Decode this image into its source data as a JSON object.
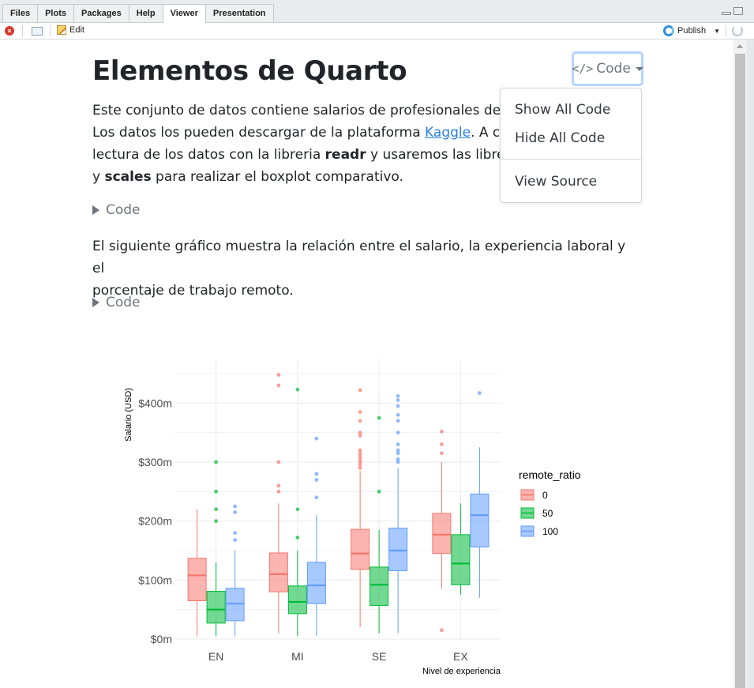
{
  "tabs": [
    "Files",
    "Plots",
    "Packages",
    "Help",
    "Viewer",
    "Presentation"
  ],
  "active_tab": "Viewer",
  "toolbar": {
    "edit_label": "Edit",
    "publish_label": "Publish"
  },
  "doc": {
    "title": "Elementos de Quarto",
    "p1_l1": "Este conjunto de datos contiene salarios de profesionales del área",
    "p1_l2_a": "Los datos los pueden descargar de la plataforma ",
    "p1_l2_link": "Kaggle",
    "p1_l2_b": ". A contin",
    "p1_l3_a": "lectura de los datos con la libreria ",
    "p1_l3_b1": "readr",
    "p1_l3_c": " y usaremos las librerias ",
    "p1_l3_d": "g",
    "p1_l4_a": "y ",
    "p1_l4_b": "scales",
    "p1_l4_c": " para realizar el boxplot comparativo.",
    "code_toggle_1": "Code",
    "p2_l1": "El siguiente gráfico muestra la relación entre el salario, la experiencia laboral y el",
    "p2_l2": "porcentaje de trabajo remoto.",
    "code_toggle_2": "Code"
  },
  "code_button": {
    "icon": "</>",
    "label": "Code"
  },
  "code_menu": [
    "Show All Code",
    "Hide All Code",
    "View Source"
  ],
  "colors": {
    "r0": "#F8766D",
    "r50": "#00BA38",
    "r100": "#619CFF",
    "link": "#2780e3"
  },
  "chart_data": {
    "type": "boxplot",
    "ylabel": "Salario (USD)",
    "xlabel": "Nivel de experiencia",
    "ylim": [
      0,
      450
    ],
    "yticks": [
      0,
      100,
      200,
      300,
      400
    ],
    "ytick_labels": [
      "$0m",
      "$100m",
      "$200m",
      "$300m",
      "$400m"
    ],
    "categories": [
      "EN",
      "MI",
      "SE",
      "EX"
    ],
    "legend_title": "remote_ratio",
    "legend_position": "right",
    "series": [
      {
        "name": "0",
        "color": "#F8766D",
        "boxes": [
          {
            "min": 5,
            "q1": 65,
            "median": 108,
            "q3": 137,
            "max": 220,
            "outliers": []
          },
          {
            "min": 10,
            "q1": 80,
            "median": 110,
            "q3": 146,
            "max": 230,
            "outliers": [
              250,
              260,
              300,
              430,
              448
            ]
          },
          {
            "min": 20,
            "q1": 118,
            "median": 145,
            "q3": 186,
            "max": 285,
            "outliers": [
              290,
              295,
              300,
              305,
              310,
              315,
              320,
              345,
              350,
              370,
              385,
              422
            ]
          },
          {
            "min": 85,
            "q1": 145,
            "median": 177,
            "q3": 213,
            "max": 300,
            "outliers": [
              15,
              315,
              330,
              352
            ]
          }
        ]
      },
      {
        "name": "50",
        "color": "#00BA38",
        "boxes": [
          {
            "min": 5,
            "q1": 27,
            "median": 50,
            "q3": 81,
            "max": 130,
            "outliers": [
              200,
              220,
              250,
              300
            ]
          },
          {
            "min": 5,
            "q1": 43,
            "median": 63,
            "q3": 90,
            "max": 150,
            "outliers": [
              172,
              220,
              423
            ]
          },
          {
            "min": 10,
            "q1": 57,
            "median": 92,
            "q3": 122,
            "max": 185,
            "outliers": [
              250,
              375
            ]
          },
          {
            "min": 75,
            "q1": 92,
            "median": 128,
            "q3": 177,
            "max": 230,
            "outliers": []
          }
        ]
      },
      {
        "name": "100",
        "color": "#619CFF",
        "boxes": [
          {
            "min": 5,
            "q1": 31,
            "median": 60,
            "q3": 86,
            "max": 150,
            "outliers": [
              168,
              180,
              215,
              225
            ]
          },
          {
            "min": 5,
            "q1": 60,
            "median": 91,
            "q3": 130,
            "max": 210,
            "outliers": [
              240,
              270,
              280,
              340
            ]
          },
          {
            "min": 10,
            "q1": 116,
            "median": 150,
            "q3": 188,
            "max": 290,
            "outliers": [
              300,
              305,
              315,
              320,
              330,
              350,
              370,
              380,
              395,
              405,
              412
            ]
          },
          {
            "min": 70,
            "q1": 156,
            "median": 210,
            "q3": 246,
            "max": 325,
            "outliers": [
              417
            ]
          }
        ]
      }
    ]
  }
}
